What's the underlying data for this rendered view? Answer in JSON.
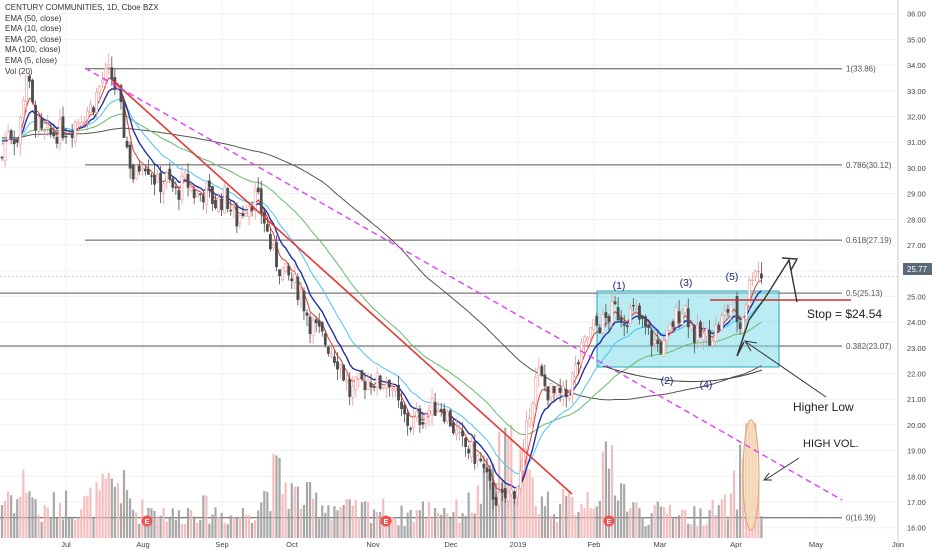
{
  "legend": {
    "title": "CENTURY COMMUNITIES, 1D, Cboe BZX",
    "indicators": [
      "EMA (50, close)",
      "EMA (10, close)",
      "EMA (20, close)",
      "MA (100, close)",
      "EMA (5, close)",
      "Vol (20)"
    ]
  },
  "chart_data": {
    "type": "candlestick",
    "x_tick_labels": [
      "Jul",
      "Aug",
      "Sep",
      "Oct",
      "Nov",
      "Dec",
      "2019",
      "Feb",
      "Mar",
      "Apr",
      "May",
      "Jun"
    ],
    "y_ticks": [
      16,
      17,
      18,
      19,
      20,
      21,
      22,
      23,
      24,
      25,
      26,
      27,
      28,
      29,
      30,
      31,
      32,
      33,
      34,
      35,
      36
    ],
    "y_tick_labels": [
      "16.00",
      "17.00",
      "18.00",
      "19.00",
      "20.00",
      "21.00",
      "22.00",
      "23.00",
      "24.00",
      "25.00",
      "26.00",
      "27.00",
      "28.00",
      "29.00",
      "30.00",
      "31.00",
      "32.00",
      "33.00",
      "34.00",
      "35.00",
      "36.00"
    ],
    "ylim": [
      15.6,
      36.3
    ],
    "last_price": "25.77",
    "price_path": [
      [
        0,
        30.0
      ],
      [
        8,
        31.6
      ],
      [
        18,
        31.0
      ],
      [
        26,
        33.8
      ],
      [
        34,
        32.0
      ],
      [
        42,
        31.2
      ],
      [
        52,
        31.3
      ],
      [
        62,
        31.5
      ],
      [
        72,
        31.6
      ],
      [
        82,
        32.1
      ],
      [
        92,
        32.4
      ],
      [
        102,
        33.4
      ],
      [
        110,
        33.7
      ],
      [
        118,
        32.8
      ],
      [
        126,
        31.0
      ],
      [
        134,
        29.5
      ],
      [
        142,
        30.4
      ],
      [
        150,
        30.0
      ],
      [
        158,
        29.3
      ],
      [
        166,
        29.6
      ],
      [
        176,
        29.0
      ],
      [
        186,
        29.5
      ],
      [
        196,
        28.9
      ],
      [
        206,
        29.1
      ],
      [
        216,
        28.6
      ],
      [
        226,
        28.9
      ],
      [
        236,
        27.9
      ],
      [
        246,
        28.6
      ],
      [
        256,
        28.9
      ],
      [
        264,
        28.0
      ],
      [
        272,
        26.7
      ],
      [
        282,
        26.0
      ],
      [
        292,
        25.6
      ],
      [
        300,
        25.2
      ],
      [
        310,
        24.0
      ],
      [
        320,
        23.5
      ],
      [
        330,
        23.0
      ],
      [
        340,
        22.4
      ],
      [
        350,
        21.2
      ],
      [
        360,
        21.6
      ],
      [
        370,
        21.8
      ],
      [
        380,
        21.6
      ],
      [
        390,
        21.8
      ],
      [
        400,
        20.5
      ],
      [
        410,
        20.0
      ],
      [
        420,
        20.3
      ],
      [
        430,
        20.6
      ],
      [
        440,
        20.8
      ],
      [
        450,
        20.2
      ],
      [
        460,
        19.3
      ],
      [
        470,
        19.0
      ],
      [
        480,
        18.6
      ],
      [
        490,
        17.5
      ],
      [
        500,
        17.0
      ],
      [
        510,
        17.3
      ],
      [
        516,
        17.6
      ],
      [
        522,
        18.2
      ],
      [
        530,
        20.8
      ],
      [
        538,
        22.0
      ],
      [
        546,
        21.4
      ],
      [
        556,
        21.1
      ],
      [
        566,
        21.1
      ],
      [
        576,
        22.2
      ],
      [
        586,
        23.3
      ],
      [
        594,
        23.8
      ],
      [
        604,
        24.0
      ],
      [
        614,
        24.5
      ],
      [
        624,
        24.2
      ],
      [
        634,
        24.4
      ],
      [
        644,
        23.8
      ],
      [
        654,
        23.2
      ],
      [
        664,
        23.0
      ],
      [
        674,
        24.1
      ],
      [
        684,
        24.7
      ],
      [
        694,
        23.5
      ],
      [
        704,
        23.4
      ],
      [
        714,
        23.6
      ],
      [
        724,
        24.2
      ],
      [
        732,
        24.8
      ],
      [
        740,
        23.8
      ],
      [
        748,
        25.2
      ],
      [
        754,
        26.3
      ],
      [
        762,
        25.8
      ]
    ],
    "volume_path": [
      [
        0,
        0.3
      ],
      [
        8,
        0.45
      ],
      [
        18,
        0.35
      ],
      [
        26,
        0.6
      ],
      [
        40,
        0.2
      ],
      [
        60,
        0.35
      ],
      [
        80,
        0.3
      ],
      [
        100,
        0.4
      ],
      [
        118,
        0.55
      ],
      [
        136,
        0.25
      ],
      [
        156,
        0.3
      ],
      [
        176,
        0.2
      ],
      [
        196,
        0.3
      ],
      [
        216,
        0.25
      ],
      [
        236,
        0.2
      ],
      [
        256,
        0.3
      ],
      [
        276,
        0.6
      ],
      [
        296,
        0.4
      ],
      [
        316,
        0.35
      ],
      [
        336,
        0.3
      ],
      [
        356,
        0.25
      ],
      [
        376,
        0.3
      ],
      [
        396,
        0.2
      ],
      [
        416,
        0.25
      ],
      [
        436,
        0.3
      ],
      [
        456,
        0.25
      ],
      [
        476,
        0.35
      ],
      [
        496,
        0.7
      ],
      [
        516,
        0.8
      ],
      [
        536,
        0.4
      ],
      [
        556,
        0.3
      ],
      [
        576,
        0.35
      ],
      [
        596,
        0.45
      ],
      [
        612,
        0.75
      ],
      [
        630,
        0.3
      ],
      [
        650,
        0.2
      ],
      [
        670,
        0.3
      ],
      [
        690,
        0.2
      ],
      [
        710,
        0.25
      ],
      [
        730,
        0.3
      ],
      [
        750,
        1.0
      ],
      [
        762,
        0.2
      ]
    ],
    "fib_levels": [
      {
        "label": "1(33.86)",
        "value": 33.86
      },
      {
        "label": "0.786(30.12)",
        "value": 30.12
      },
      {
        "label": "0.618(27.19)",
        "value": 27.19
      },
      {
        "label": "0.5(25.13)",
        "value": 25.13
      },
      {
        "label": "0.382(23.07)",
        "value": 23.07
      },
      {
        "label": "0(16.39)",
        "value": 16.39
      }
    ],
    "wave_labels": [
      "(1)",
      "(2)",
      "(3)",
      "(4)",
      "(5)"
    ],
    "annotations": {
      "stop": "Stop = $24.54",
      "higher_low": "Higher Low",
      "high_vol": "HIGH VOL."
    },
    "stop_value": 24.54,
    "earnings_marker": "E",
    "colors": {
      "up": "#ef9a9a",
      "down": "#4d4d4d",
      "ema5": "#e53935",
      "ema10": "#1e2fa8",
      "ema20": "#4fc3f7",
      "ema50": "#66bb6a",
      "ma100": "#555555",
      "trend_red": "#e53935",
      "trend_magenta": "#e040fb",
      "box_fill": "#80deea",
      "vol_highlight": "#f5deb3"
    }
  }
}
